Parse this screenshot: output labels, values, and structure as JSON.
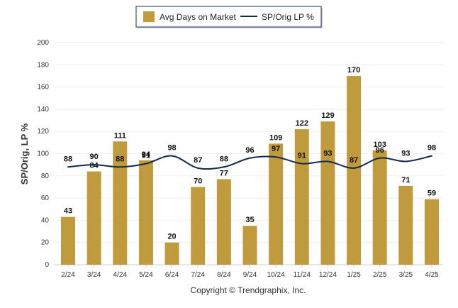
{
  "chart_data": {
    "type": "bar",
    "categories": [
      "2/24",
      "3/24",
      "4/24",
      "5/24",
      "6/24",
      "7/24",
      "8/24",
      "9/24",
      "10/24",
      "11/24",
      "12/24",
      "1/25",
      "2/25",
      "3/25",
      "4/25"
    ],
    "series": [
      {
        "name": "Avg Days on Market",
        "type": "bar",
        "color": "#C09B3E",
        "values": [
          43,
          84,
          111,
          94,
          20,
          70,
          77,
          35,
          109,
          122,
          129,
          170,
          103,
          71,
          59
        ]
      },
      {
        "name": "SP/Orig LP %",
        "type": "line",
        "color": "#13294B",
        "values": [
          88,
          90,
          88,
          91,
          98,
          87,
          88,
          96,
          97,
          91,
          93,
          87,
          96,
          93,
          98
        ]
      }
    ],
    "ylabel": "SP/Orig, LP %",
    "ylim": [
      0,
      200
    ],
    "yticks": [
      "0",
      "20",
      "40",
      "60",
      "80",
      "100",
      "120",
      "140",
      "160",
      "180",
      "200"
    ],
    "grid": true,
    "legend_position": "top-center"
  },
  "footer": {
    "copyright": "Copyright © Trendgraphix, Inc."
  }
}
